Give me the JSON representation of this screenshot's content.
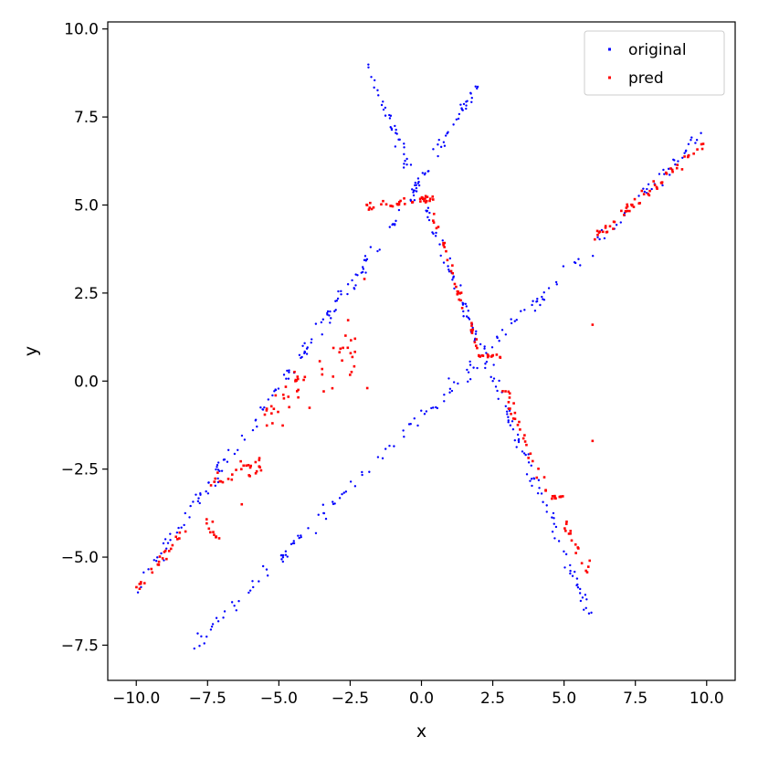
{
  "chart_data": {
    "type": "scatter",
    "title": "",
    "xlabel": "x",
    "ylabel": "y",
    "xlim": [
      -11.0,
      11.0
    ],
    "ylim": [
      -8.5,
      10.2
    ],
    "xticks": [
      -10.0,
      -7.5,
      -5.0,
      -2.5,
      0.0,
      2.5,
      5.0,
      7.5,
      10.0
    ],
    "xtick_labels": [
      "−10.0",
      "−7.5",
      "−5.0",
      "−2.5",
      "0.0",
      "2.5",
      "5.0",
      "7.5",
      "10.0"
    ],
    "yticks": [
      -7.5,
      -5.0,
      -2.5,
      0.0,
      2.5,
      5.0,
      7.5,
      10.0
    ],
    "ytick_labels": [
      "−7.5",
      "−5.0",
      "−2.5",
      "0.0",
      "2.5",
      "5.0",
      "7.5",
      "10.0"
    ],
    "grid": false,
    "legend": {
      "position": "top-right"
    },
    "series": [
      {
        "name": "original",
        "color": "#0000ff",
        "marker": "dot",
        "segments": [
          {
            "x_start": -10.0,
            "x_end": 0.0,
            "n": 140,
            "y_at_start": -5.9,
            "y_at_end": 5.6,
            "noise": 0.18
          },
          {
            "x_start": -8.0,
            "x_end": 10.0,
            "n": 170,
            "y_at_start": -7.5,
            "y_at_end": 7.1,
            "noise": 0.17
          },
          {
            "x_start": -2.0,
            "x_end": 6.0,
            "n": 160,
            "y_at_start": 9.2,
            "y_at_end": -6.9,
            "noise": 0.22
          },
          {
            "x_start": -0.5,
            "x_end": 2.0,
            "n": 45,
            "y_at_start": 5.1,
            "y_at_end": 8.5,
            "noise": 0.15
          }
        ]
      },
      {
        "name": "pred",
        "color": "#ff0000",
        "marker": "square",
        "segments": [
          {
            "x_start": -10.0,
            "x_end": -8.0,
            "n": 25,
            "y_at_start": -5.9,
            "y_at_end": -4.0,
            "noise": 0.1
          },
          {
            "x_start": -7.6,
            "x_end": -7.0,
            "n": 10,
            "y_at_start": -4.1,
            "y_at_end": -4.5,
            "noise": 0.15
          },
          {
            "x_start": -7.5,
            "x_end": -5.6,
            "n": 28,
            "y_at_start": -2.8,
            "y_at_end": -2.4,
            "noise": 0.2
          },
          {
            "x_start": -5.5,
            "x_end": -4.6,
            "n": 16,
            "y_at_start": -1.2,
            "y_at_end": -0.5,
            "noise": 0.4
          },
          {
            "x_start": -4.5,
            "x_end": -3.8,
            "n": 12,
            "y_at_start": -0.2,
            "y_at_end": -0.6,
            "noise": 0.5
          },
          {
            "x_start": -3.6,
            "x_end": -2.3,
            "n": 22,
            "y_at_start": 0.0,
            "y_at_end": 1.0,
            "noise": 0.55
          },
          {
            "x_start": -2.0,
            "x_end": 0.5,
            "n": 38,
            "y_at_start": 4.9,
            "y_at_end": 5.2,
            "noise": 0.08
          },
          {
            "x_start": 0.4,
            "x_end": 2.0,
            "n": 35,
            "y_at_start": 4.6,
            "y_at_end": 0.9,
            "noise": 0.18
          },
          {
            "x_start": 2.0,
            "x_end": 2.8,
            "n": 14,
            "y_at_start": 0.75,
            "y_at_end": 0.7,
            "noise": 0.05
          },
          {
            "x_start": 2.8,
            "x_end": 4.4,
            "n": 28,
            "y_at_start": 0.0,
            "y_at_end": -3.3,
            "noise": 0.25
          },
          {
            "x_start": 4.4,
            "x_end": 5.0,
            "n": 10,
            "y_at_start": -3.3,
            "y_at_end": -3.3,
            "noise": 0.03
          },
          {
            "x_start": 5.0,
            "x_end": 5.9,
            "n": 16,
            "y_at_start": -4.0,
            "y_at_end": -5.5,
            "noise": 0.2
          },
          {
            "x_start": 6.0,
            "x_end": 6.9,
            "n": 14,
            "y_at_start": 4.1,
            "y_at_end": 4.5,
            "noise": 0.08
          },
          {
            "x_start": 7.0,
            "x_end": 10.0,
            "n": 45,
            "y_at_start": 4.7,
            "y_at_end": 6.8,
            "noise": 0.12
          }
        ],
        "extra_points": [
          [
            6.0,
            1.6
          ],
          [
            6.0,
            -1.7
          ],
          [
            -2.0,
            2.9
          ],
          [
            -1.9,
            -0.2
          ],
          [
            -6.3,
            -3.5
          ],
          [
            5.9,
            -5.1
          ]
        ]
      }
    ]
  }
}
